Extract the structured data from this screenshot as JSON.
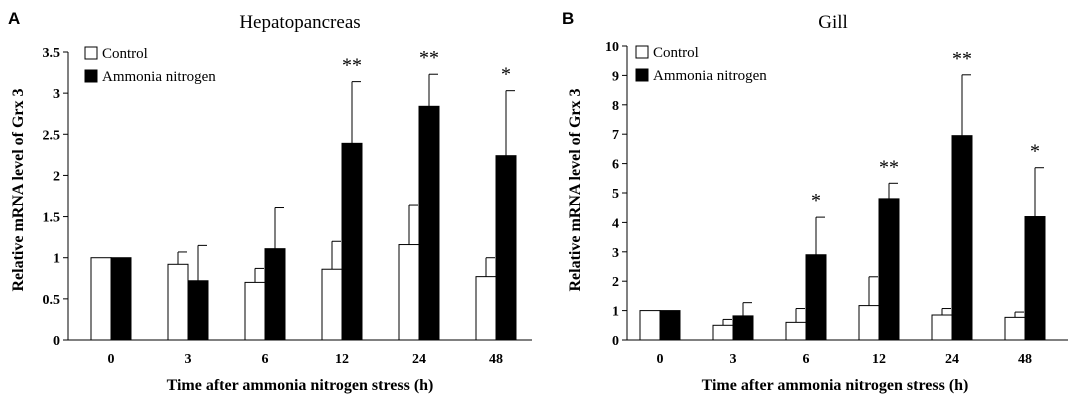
{
  "chart_data": [
    {
      "type": "bar",
      "panel": "A",
      "title": "Hepatopancreas",
      "xlabel": "Time after ammonia nitrogen stress (h)",
      "ylabel": "Relative mRNA level of Grx 3",
      "ylim": [
        0,
        3.5
      ],
      "yticks": [
        "0",
        "0.5",
        "1",
        "1.5",
        "2",
        "2.5",
        "3",
        "3.5"
      ],
      "categories": [
        "0",
        "3",
        "6",
        "12",
        "24",
        "48"
      ],
      "legend_position": "top-left",
      "series": [
        {
          "name": "Control",
          "color": "#ffffff",
          "values": [
            1.0,
            0.92,
            0.7,
            0.86,
            1.16,
            0.77
          ],
          "errors": [
            0,
            0.15,
            0.17,
            0.34,
            0.48,
            0.23
          ]
        },
        {
          "name": "Ammonia nitrogen",
          "color": "#000000",
          "values": [
            1.0,
            0.72,
            1.11,
            2.39,
            2.84,
            2.24
          ],
          "errors": [
            0,
            0.43,
            0.5,
            0.75,
            0.39,
            0.79
          ]
        }
      ],
      "significance": [
        "",
        "",
        "",
        "**",
        "**",
        "*"
      ]
    },
    {
      "type": "bar",
      "panel": "B",
      "title": "Gill",
      "xlabel": "Time after ammonia nitrogen stress (h)",
      "ylabel": "Relative mRNA level of Grx 3",
      "ylim": [
        0,
        10
      ],
      "yticks": [
        "0",
        "1",
        "2",
        "3",
        "4",
        "5",
        "6",
        "7",
        "8",
        "9",
        "10"
      ],
      "categories": [
        "0",
        "3",
        "6",
        "12",
        "24",
        "48"
      ],
      "legend_position": "top-left",
      "series": [
        {
          "name": "Control",
          "color": "#ffffff",
          "values": [
            1.0,
            0.5,
            0.6,
            1.17,
            0.85,
            0.77
          ],
          "errors": [
            0,
            0.2,
            0.47,
            0.98,
            0.22,
            0.18
          ]
        },
        {
          "name": "Ammonia nitrogen",
          "color": "#000000",
          "values": [
            1.0,
            0.82,
            2.9,
            4.8,
            6.95,
            4.2
          ],
          "errors": [
            0,
            0.45,
            1.28,
            0.53,
            2.07,
            1.66
          ]
        }
      ],
      "significance": [
        "",
        "",
        "*",
        "**",
        "**",
        "*"
      ]
    }
  ]
}
